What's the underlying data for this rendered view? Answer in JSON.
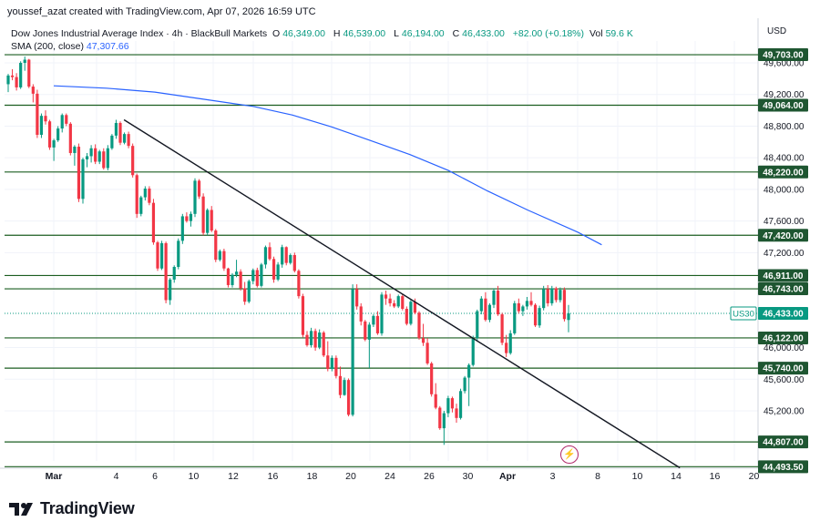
{
  "header": {
    "created_by": "youssef_azat created with TradingView.com, Apr 07, 2026 16:59 UTC"
  },
  "legend": {
    "title": "Dow Jones Industrial Average Index · 4h · BlackBull Markets",
    "o_label": "O",
    "o_value": "46,349.00",
    "h_label": "H",
    "h_value": "46,539.00",
    "l_label": "L",
    "l_value": "46,194.00",
    "c_label": "C",
    "c_value": "46,433.00",
    "change": "+82.00 (+0.18%)",
    "vol_label": "Vol",
    "vol_value": "59.6 K",
    "sma_label": "SMA (200, close)",
    "sma_value": "47,307.66"
  },
  "axis": {
    "currency": "USD"
  },
  "footer": {
    "brand": "TradingView"
  },
  "colors": {
    "up": "#089981",
    "down": "#f23645",
    "sma": "#2962ff",
    "hline": "#1b5e20",
    "trend": "#131722",
    "label_bg": "#1e5631"
  },
  "icons": {
    "alert": "lightning-icon",
    "logo": "tradingview-logo-icon"
  },
  "chart_data": {
    "type": "candlestick",
    "title": "Dow Jones Industrial Average Index · 4h · BlackBull Markets",
    "x_ticks": [
      {
        "label": "Mar",
        "bold": true,
        "t": 0
      },
      {
        "label": "4",
        "t": 3
      },
      {
        "label": "6",
        "t": 5
      },
      {
        "label": "10",
        "t": 7
      },
      {
        "label": "12",
        "t": 9
      },
      {
        "label": "16",
        "t": 11
      },
      {
        "label": "18",
        "t": 13
      },
      {
        "label": "20",
        "t": 15
      },
      {
        "label": "24",
        "t": 17
      },
      {
        "label": "26",
        "t": 19
      },
      {
        "label": "30",
        "t": 21
      },
      {
        "label": "Apr",
        "bold": true,
        "t": 23
      },
      {
        "label": "3",
        "t": 25
      },
      {
        "label": "8",
        "t": 27
      },
      {
        "label": "10",
        "t": 29
      },
      {
        "label": "14",
        "t": 31
      },
      {
        "label": "16",
        "t": 33
      },
      {
        "label": "20",
        "t": 35
      }
    ],
    "y_ticks": [
      "49,600.00",
      "49,200.00",
      "48,800.00",
      "48,400.00",
      "48,000.00",
      "47,600.00",
      "47,200.00",
      "46,000.00",
      "45,600.00",
      "45,200.00"
    ],
    "ylim": [
      44300,
      50050
    ],
    "horizontal_levels": [
      "49,703.00",
      "49,064.00",
      "48,220.00",
      "47,420.00",
      "46,911.00",
      "46,743.00",
      "46,122.00",
      "45,740.00",
      "44,807.00",
      "44,493.50"
    ],
    "current_price": {
      "symbol": "US30",
      "value": "46,433.00"
    },
    "trendline": {
      "from": {
        "t": 3.4,
        "price": 48880
      },
      "to": {
        "t": 31.2,
        "price": 44480
      }
    },
    "sma_series": [
      [
        0.0,
        49310
      ],
      [
        2.5,
        49280
      ],
      [
        5,
        49230
      ],
      [
        7.5,
        49140
      ],
      [
        10,
        49050
      ],
      [
        12,
        48940
      ],
      [
        14,
        48790
      ],
      [
        16,
        48620
      ],
      [
        18,
        48440
      ],
      [
        20,
        48240
      ],
      [
        22,
        47980
      ],
      [
        24,
        47740
      ],
      [
        26,
        47460
      ],
      [
        27.2,
        47300
      ]
    ],
    "candles": [
      [
        49330,
        49460,
        49230,
        49440
      ],
      [
        49440,
        49520,
        49380,
        49420
      ],
      [
        49420,
        49470,
        49250,
        49290
      ],
      [
        49290,
        49620,
        49270,
        49600
      ],
      [
        49600,
        49680,
        49500,
        49640
      ],
      [
        49640,
        49650,
        49280,
        49300
      ],
      [
        49300,
        49330,
        49100,
        49210
      ],
      [
        49210,
        49260,
        48650,
        48690
      ],
      [
        48690,
        48960,
        48650,
        48930
      ],
      [
        48930,
        49000,
        48820,
        48860
      ],
      [
        48860,
        48880,
        48500,
        48530
      ],
      [
        48530,
        48640,
        48360,
        48620
      ],
      [
        48620,
        48800,
        48600,
        48770
      ],
      [
        48770,
        48960,
        48720,
        48940
      ],
      [
        48940,
        48960,
        48800,
        48830
      ],
      [
        48830,
        48850,
        48430,
        48460
      ],
      [
        48460,
        48560,
        48300,
        48540
      ],
      [
        48540,
        48580,
        47840,
        47880
      ],
      [
        47880,
        48400,
        47820,
        48380
      ],
      [
        48380,
        48460,
        48280,
        48420
      ],
      [
        48420,
        48560,
        48340,
        48520
      ],
      [
        48520,
        48570,
        48320,
        48350
      ],
      [
        48350,
        48500,
        48320,
        48480
      ],
      [
        48480,
        48520,
        48250,
        48270
      ],
      [
        48270,
        48560,
        48240,
        48520
      ],
      [
        48520,
        48700,
        48500,
        48680
      ],
      [
        48680,
        48880,
        48640,
        48840
      ],
      [
        48840,
        48860,
        48560,
        48590
      ],
      [
        48590,
        48720,
        48570,
        48700
      ],
      [
        48700,
        48730,
        48520,
        48550
      ],
      [
        48550,
        48580,
        48150,
        48180
      ],
      [
        48180,
        48200,
        47640,
        47690
      ],
      [
        47690,
        47920,
        47660,
        47900
      ],
      [
        47900,
        48040,
        47860,
        48010
      ],
      [
        48010,
        48040,
        47800,
        47830
      ],
      [
        47830,
        47880,
        47300,
        47330
      ],
      [
        47330,
        47350,
        46970,
        47000
      ],
      [
        47000,
        47350,
        46980,
        47320
      ],
      [
        47320,
        47340,
        46560,
        46600
      ],
      [
        46600,
        46880,
        46540,
        46860
      ],
      [
        46860,
        47040,
        46820,
        47020
      ],
      [
        47020,
        47380,
        46990,
        47350
      ],
      [
        47350,
        47690,
        47310,
        47660
      ],
      [
        47660,
        47710,
        47580,
        47600
      ],
      [
        47600,
        47720,
        47530,
        47690
      ],
      [
        47690,
        48140,
        47650,
        48110
      ],
      [
        48110,
        48130,
        47880,
        47910
      ],
      [
        47910,
        47950,
        47420,
        47450
      ],
      [
        47450,
        47760,
        47420,
        47740
      ],
      [
        47740,
        47790,
        47460,
        47480
      ],
      [
        47480,
        47500,
        47080,
        47110
      ],
      [
        47110,
        47240,
        47090,
        47220
      ],
      [
        47220,
        47250,
        46970,
        47000
      ],
      [
        47000,
        47010,
        46760,
        46790
      ],
      [
        46790,
        46940,
        46760,
        46920
      ],
      [
        46920,
        47110,
        46890,
        46960
      ],
      [
        46960,
        46990,
        46720,
        46750
      ],
      [
        46750,
        46830,
        46540,
        46580
      ],
      [
        46580,
        46860,
        46560,
        46840
      ],
      [
        46840,
        47000,
        46800,
        46980
      ],
      [
        46980,
        47010,
        46760,
        46780
      ],
      [
        46780,
        47070,
        46760,
        47050
      ],
      [
        47050,
        47290,
        47000,
        47270
      ],
      [
        47270,
        47330,
        47100,
        47120
      ],
      [
        47120,
        47150,
        46820,
        46860
      ],
      [
        46860,
        47080,
        46840,
        47050
      ],
      [
        47050,
        47300,
        47010,
        47270
      ],
      [
        47270,
        47280,
        47040,
        47070
      ],
      [
        47070,
        47190,
        47050,
        47170
      ],
      [
        47170,
        47200,
        46950,
        46970
      ],
      [
        46970,
        46990,
        46620,
        46650
      ],
      [
        46650,
        46680,
        46130,
        46160
      ],
      [
        46160,
        46210,
        46010,
        46030
      ],
      [
        46030,
        46250,
        46000,
        46210
      ],
      [
        46210,
        46240,
        45960,
        46000
      ],
      [
        46000,
        46230,
        45980,
        46190
      ],
      [
        46190,
        46210,
        45880,
        45900
      ],
      [
        45900,
        46080,
        45700,
        45730
      ],
      [
        45730,
        45900,
        45700,
        45870
      ],
      [
        45870,
        45900,
        45610,
        45640
      ],
      [
        45640,
        45760,
        45360,
        45400
      ],
      [
        45400,
        45620,
        45390,
        45590
      ],
      [
        45590,
        45610,
        45130,
        45150
      ],
      [
        45150,
        46800,
        45130,
        46740
      ],
      [
        46740,
        46800,
        46480,
        46520
      ],
      [
        46520,
        46560,
        46280,
        46330
      ],
      [
        46330,
        46350,
        46080,
        46100
      ],
      [
        46100,
        46320,
        45740,
        46290
      ],
      [
        46290,
        46420,
        46260,
        46400
      ],
      [
        46400,
        46460,
        46160,
        46180
      ],
      [
        46180,
        46700,
        46150,
        46670
      ],
      [
        46670,
        46720,
        46540,
        46620
      ],
      [
        46620,
        46680,
        46520,
        46560
      ],
      [
        46560,
        46600,
        46500,
        46520
      ],
      [
        46520,
        46670,
        46500,
        46650
      ],
      [
        46650,
        46680,
        46470,
        46490
      ],
      [
        46490,
        46520,
        46280,
        46300
      ],
      [
        46300,
        46600,
        46280,
        46580
      ],
      [
        46580,
        46620,
        46420,
        46440
      ],
      [
        46440,
        46460,
        46100,
        46120
      ],
      [
        46120,
        46300,
        46020,
        46060
      ],
      [
        46060,
        46120,
        45780,
        45800
      ],
      [
        45800,
        45820,
        45380,
        45410
      ],
      [
        45410,
        45550,
        45220,
        45240
      ],
      [
        45240,
        45260,
        44960,
        44980
      ],
      [
        44980,
        45200,
        44770,
        45170
      ],
      [
        45170,
        45390,
        45120,
        45360
      ],
      [
        45360,
        45380,
        45180,
        45230
      ],
      [
        45230,
        45290,
        45050,
        45110
      ],
      [
        45110,
        45480,
        45090,
        45450
      ],
      [
        45450,
        45640,
        45420,
        45620
      ],
      [
        45620,
        45800,
        45260,
        45780
      ],
      [
        45780,
        46150,
        45760,
        46120
      ],
      [
        46120,
        46480,
        46080,
        46460
      ],
      [
        46460,
        46650,
        46420,
        46620
      ],
      [
        46620,
        46700,
        46330,
        46350
      ],
      [
        46350,
        46560,
        46320,
        46540
      ],
      [
        46540,
        46750,
        46500,
        46720
      ],
      [
        46720,
        46780,
        46400,
        46420
      ],
      [
        46420,
        46440,
        46030,
        46060
      ],
      [
        46060,
        46160,
        45880,
        45930
      ],
      [
        45930,
        46220,
        45910,
        46180
      ],
      [
        46180,
        46590,
        46160,
        46560
      ],
      [
        46560,
        46620,
        46430,
        46460
      ],
      [
        46460,
        46540,
        46400,
        46520
      ],
      [
        46520,
        46640,
        46480,
        46590
      ],
      [
        46590,
        46700,
        46520,
        46540
      ],
      [
        46540,
        46560,
        46260,
        46280
      ],
      [
        46280,
        46530,
        46250,
        46500
      ],
      [
        46500,
        46780,
        46470,
        46740
      ],
      [
        46740,
        46790,
        46520,
        46560
      ],
      [
        46560,
        46780,
        46530,
        46750
      ],
      [
        46750,
        46770,
        46570,
        46600
      ],
      [
        46600,
        46760,
        46570,
        46730
      ],
      [
        46730,
        46760,
        46330,
        46360
      ],
      [
        46349,
        46539,
        46194,
        46433
      ]
    ]
  }
}
